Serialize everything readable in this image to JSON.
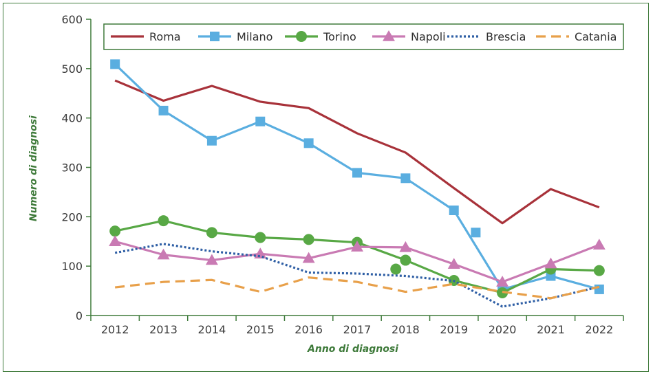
{
  "chart_data": {
    "type": "line",
    "title": "",
    "xlabel": "Anno di diagnosi",
    "ylabel": "Numero di diagnosi",
    "ylim": [
      0,
      600
    ],
    "yticks": [
      0,
      100,
      200,
      300,
      400,
      500,
      600
    ],
    "categories": [
      "2012",
      "2013",
      "2014",
      "2015",
      "2016",
      "2017",
      "2018",
      "2019",
      "2020",
      "2021",
      "2022"
    ],
    "grid": false,
    "legend_position": "top",
    "series": [
      {
        "name": "Roma",
        "color": "#a8323a",
        "style": "solid",
        "marker": "none",
        "values": [
          476,
          435,
          465,
          433,
          420,
          369,
          330,
          258,
          187,
          256,
          219
        ]
      },
      {
        "name": "Milano",
        "color": "#5aaee0",
        "style": "solid",
        "marker": "square",
        "values": [
          509,
          415,
          354,
          393,
          349,
          289,
          278,
          213,
          53,
          80,
          53
        ],
        "extra_points": [
          {
            "x": 7.45,
            "y": 168
          }
        ]
      },
      {
        "name": "Torino",
        "color": "#58a845",
        "style": "solid",
        "marker": "circle",
        "values": [
          171,
          192,
          168,
          158,
          154,
          148,
          112,
          71,
          46,
          94,
          91
        ],
        "extra_points": [
          {
            "x": 5.8,
            "y": 94
          }
        ]
      },
      {
        "name": "Napoli",
        "color": "#c97ab3",
        "style": "solid",
        "marker": "triangle",
        "values": [
          150,
          123,
          112,
          125,
          116,
          139,
          138,
          104,
          68,
          105,
          143
        ]
      },
      {
        "name": "Brescia",
        "color": "#2f5fa5",
        "style": "dotted",
        "marker": "none",
        "values": [
          127,
          145,
          130,
          120,
          87,
          85,
          80,
          70,
          18,
          35,
          58
        ]
      },
      {
        "name": "Catania",
        "color": "#e8a04a",
        "style": "dashed",
        "marker": "none",
        "values": [
          57,
          68,
          72,
          48,
          77,
          68,
          48,
          64,
          48,
          35,
          58
        ]
      }
    ]
  }
}
